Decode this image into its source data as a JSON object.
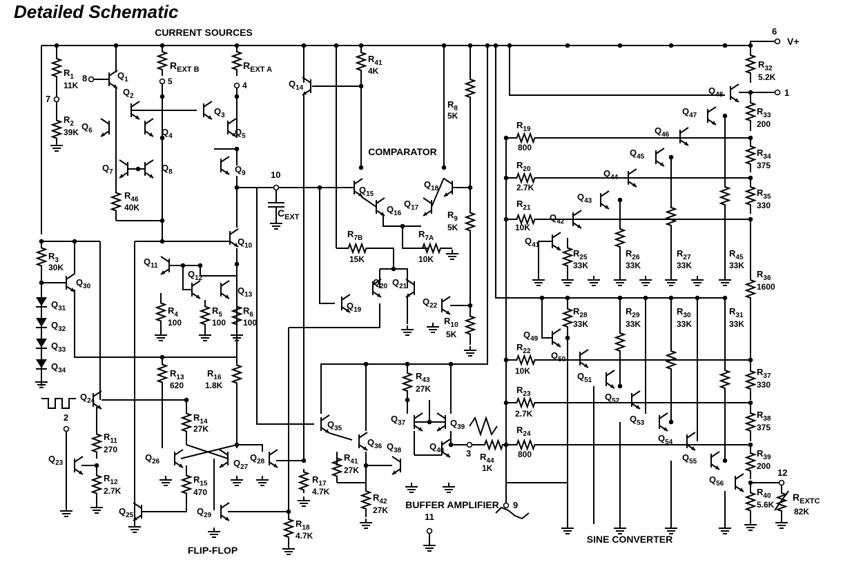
{
  "title": "Detailed Schematic",
  "sections": {
    "current_sources": "CURRENT SOURCES",
    "comparator": "COMPARATOR",
    "flip_flop": "FLIP-FLOP",
    "buffer_amplifier": "BUFFER AMPLIFIER",
    "sine_converter": "SINE CONVERTER"
  },
  "supply": "V+",
  "pins": [
    "6",
    "8",
    "7",
    "5",
    "4",
    "10",
    "1",
    "9",
    "3",
    "2",
    "11",
    "12"
  ],
  "resistors": [
    {
      "name": "R1",
      "value": "11K"
    },
    {
      "name": "R2",
      "value": "39K"
    },
    {
      "name": "REXT B",
      "value": ""
    },
    {
      "name": "REXT A",
      "value": ""
    },
    {
      "name": "R41",
      "value": "4K"
    },
    {
      "name": "R8",
      "value": "5K"
    },
    {
      "name": "R46",
      "value": "40K"
    },
    {
      "name": "R3",
      "value": "30K"
    },
    {
      "name": "R4",
      "value": "100"
    },
    {
      "name": "R5",
      "value": "100"
    },
    {
      "name": "R6",
      "value": "100"
    },
    {
      "name": "R7B",
      "value": "15K"
    },
    {
      "name": "R7A",
      "value": "10K"
    },
    {
      "name": "R9",
      "value": "5K"
    },
    {
      "name": "R10",
      "value": "5K"
    },
    {
      "name": "R13",
      "value": "620"
    },
    {
      "name": "R16",
      "value": "1.8K"
    },
    {
      "name": "R14",
      "value": "27K"
    },
    {
      "name": "R15",
      "value": "470"
    },
    {
      "name": "R11",
      "value": "270"
    },
    {
      "name": "R12",
      "value": "2.7K"
    },
    {
      "name": "R17",
      "value": "4.7K"
    },
    {
      "name": "R18",
      "value": "4.7K"
    },
    {
      "name": "R43",
      "value": "27K"
    },
    {
      "name": "R41",
      "value": "27K"
    },
    {
      "name": "R42",
      "value": "27K"
    },
    {
      "name": "R44",
      "value": "1K"
    },
    {
      "name": "R19",
      "value": "800"
    },
    {
      "name": "R20",
      "value": "2.7K"
    },
    {
      "name": "R21",
      "value": "10K"
    },
    {
      "name": "R22",
      "value": "10K"
    },
    {
      "name": "R23",
      "value": "2.7K"
    },
    {
      "name": "R24",
      "value": "800"
    },
    {
      "name": "R25",
      "value": "33K"
    },
    {
      "name": "R26",
      "value": "33K"
    },
    {
      "name": "R27",
      "value": "33K"
    },
    {
      "name": "R45",
      "value": "33K"
    },
    {
      "name": "R28",
      "value": "33K"
    },
    {
      "name": "R29",
      "value": "33K"
    },
    {
      "name": "R30",
      "value": "33K"
    },
    {
      "name": "R31",
      "value": "33K"
    },
    {
      "name": "R32",
      "value": "5.2K"
    },
    {
      "name": "R33",
      "value": "200"
    },
    {
      "name": "R34",
      "value": "375"
    },
    {
      "name": "R35",
      "value": "330"
    },
    {
      "name": "R36",
      "value": "1600"
    },
    {
      "name": "R37",
      "value": "330"
    },
    {
      "name": "R38",
      "value": "375"
    },
    {
      "name": "R39",
      "value": "200"
    },
    {
      "name": "R40",
      "value": "5.6K"
    },
    {
      "name": "REXTC",
      "value": "82K"
    }
  ],
  "capacitor": "CEXT",
  "transistors": [
    "Q1",
    "Q2",
    "Q3",
    "Q4",
    "Q5",
    "Q6",
    "Q7",
    "Q8",
    "Q9",
    "Q10",
    "Q11",
    "Q12",
    "Q13",
    "Q14",
    "Q15",
    "Q16",
    "Q17",
    "Q18",
    "Q19",
    "Q20",
    "Q21",
    "Q22",
    "Q23",
    "Q24",
    "Q25",
    "Q26",
    "Q27",
    "Q28",
    "Q29",
    "Q30",
    "Q35",
    "Q36",
    "Q37",
    "Q38",
    "Q39",
    "Q40",
    "Q41",
    "Q42",
    "Q43",
    "Q44",
    "Q45",
    "Q46",
    "Q47",
    "Q48",
    "Q49",
    "Q50",
    "Q51",
    "Q52",
    "Q53",
    "Q54",
    "Q55",
    "Q56"
  ],
  "diodes": [
    "Q31",
    "Q32",
    "Q33",
    "Q34"
  ]
}
